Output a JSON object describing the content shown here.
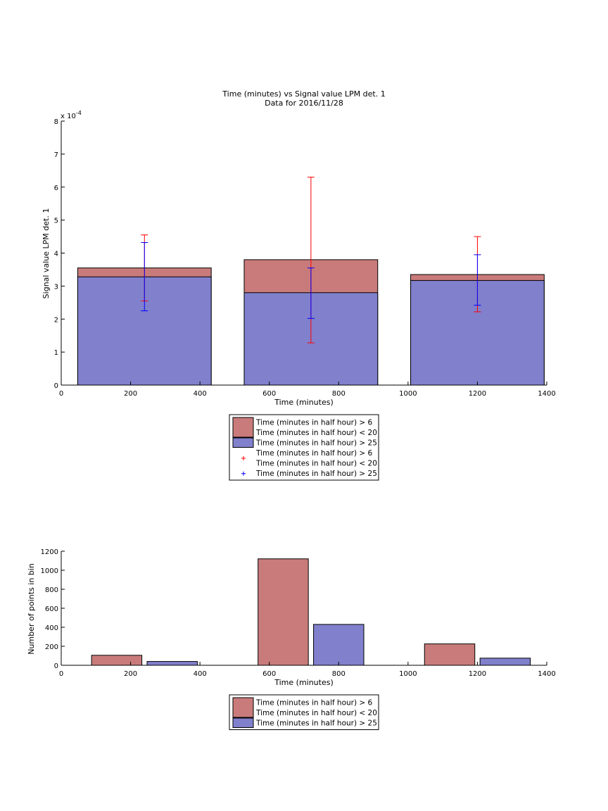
{
  "chart_data": [
    {
      "type": "bar",
      "title": "Time (minutes) vs Signal value LPM det. 1",
      "subtitle": "Data for 2016/11/28",
      "xlabel": "Time (minutes)",
      "ylabel": "Signal value LPM det. 1",
      "y_exponent_label": "x 10",
      "y_exponent_power": "-4",
      "xlim": [
        0,
        1400
      ],
      "ylim": [
        0,
        8
      ],
      "xticks": [
        0,
        200,
        400,
        600,
        800,
        1000,
        1200,
        1400
      ],
      "yticks": [
        0,
        1,
        2,
        3,
        4,
        5,
        6,
        7,
        8
      ],
      "bar_x": [
        240,
        720,
        1200
      ],
      "bar_width": 385,
      "series": [
        {
          "name": "Time (minutes in half hour) > 6 Time (minutes in half hour) < 20",
          "color": "#c97b7b",
          "errorbar_color": "#ff0000",
          "values": [
            3.55,
            3.8,
            3.35
          ],
          "errorbar_low": [
            2.55,
            1.28,
            2.22
          ],
          "errorbar_high": [
            4.55,
            6.3,
            4.5
          ]
        },
        {
          "name": "Time (minutes in half hour) > 25",
          "color": "#8080cc",
          "errorbar_color": "#0000ff",
          "values": [
            3.28,
            2.8,
            3.17
          ],
          "errorbar_low": [
            2.25,
            2.02,
            2.42
          ],
          "errorbar_high": [
            4.32,
            3.55,
            3.95
          ]
        }
      ],
      "legend": [
        {
          "kind": "patch",
          "color": "#c97b7b",
          "lines": [
            "Time (minutes in half hour) > 6",
            "Time (minutes in half hour) < 20"
          ]
        },
        {
          "kind": "patch",
          "color": "#8080cc",
          "lines": [
            "Time (minutes in half hour) > 25"
          ]
        },
        {
          "kind": "marker",
          "color": "#ff0000",
          "lines": [
            "Time (minutes in half hour) > 6",
            "Time (minutes in half hour) < 20"
          ]
        },
        {
          "kind": "marker",
          "color": "#0000ff",
          "lines": [
            "Time (minutes in half hour) > 25"
          ]
        }
      ],
      "legend_position": "below"
    },
    {
      "type": "bar",
      "xlabel": "Time (minutes)",
      "ylabel": "Number of points in bin",
      "xlim": [
        0,
        1400
      ],
      "ylim": [
        0,
        1200
      ],
      "xticks": [
        0,
        200,
        400,
        600,
        800,
        1000,
        1200,
        1400
      ],
      "yticks": [
        0,
        200,
        400,
        600,
        800,
        1000,
        1200
      ],
      "bar_width": 145,
      "series": [
        {
          "name": "Time (minutes in half hour) > 6 Time (minutes in half hour) < 20",
          "color": "#c97b7b",
          "x": [
            160,
            640,
            1120
          ],
          "values": [
            105,
            1120,
            225
          ]
        },
        {
          "name": "Time (minutes in half hour) > 25",
          "color": "#8080cc",
          "x": [
            320,
            800,
            1280
          ],
          "values": [
            40,
            430,
            75
          ]
        }
      ],
      "legend": [
        {
          "kind": "patch",
          "color": "#c97b7b",
          "lines": [
            "Time (minutes in half hour) > 6",
            "Time (minutes in half hour) < 20"
          ]
        },
        {
          "kind": "patch",
          "color": "#8080cc",
          "lines": [
            "Time (minutes in half hour) > 25"
          ]
        }
      ],
      "legend_position": "below"
    }
  ]
}
